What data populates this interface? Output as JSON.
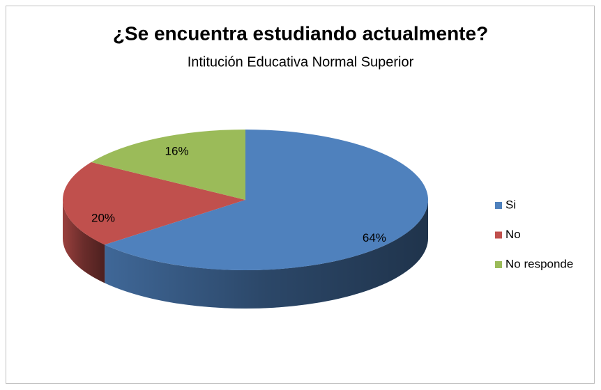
{
  "chart_data": {
    "type": "pie3d",
    "title": "¿Se encuentra estudiando actualmente?",
    "subtitle": "Intitución Educativa Normal Superior",
    "categories": [
      "Si",
      "No",
      "No responde"
    ],
    "values": [
      64,
      20,
      16
    ],
    "value_labels": [
      "64%",
      "20%",
      "16%"
    ],
    "colors": [
      "#4f81bd",
      "#c0504d",
      "#9bbb59"
    ],
    "legend": "right"
  }
}
